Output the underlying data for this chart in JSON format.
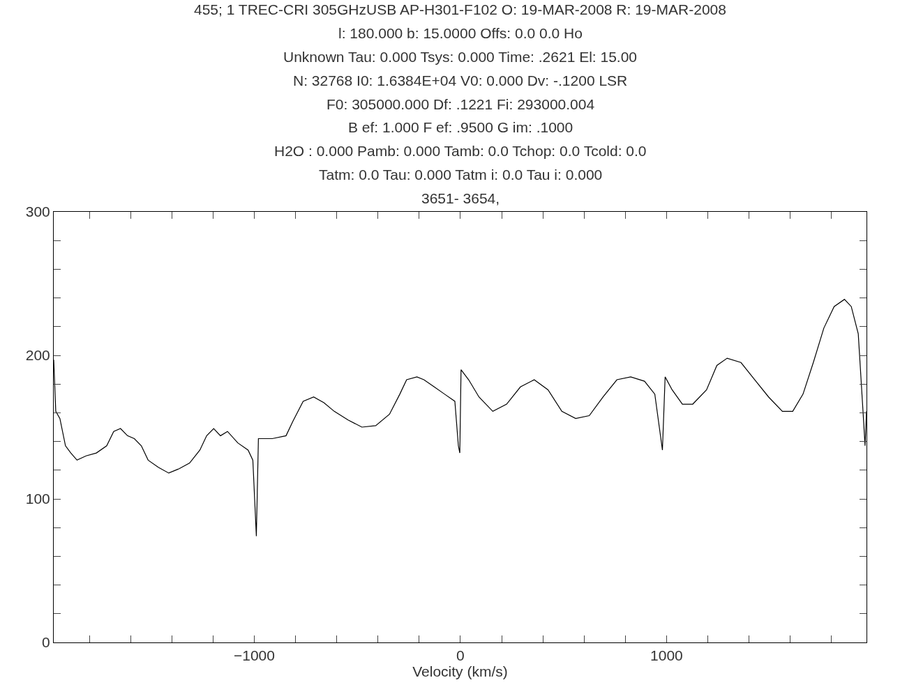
{
  "chart_data": {
    "type": "line",
    "xlabel": "Velocity (km/s)",
    "annotations": [
      "455; 1 TREC-CRI 305GHzUSB AP-H301-F102 O: 19-MAR-2008 R: 19-MAR-2008",
      "l: 180.000 b: 15.0000 Offs: 0.0 0.0 Ho",
      "Unknown Tau: 0.000 Tsys: 0.000 Time: .2621 El: 15.00",
      "N: 32768 I0: 1.6384E+04 V0: 0.000 Dv: -.1200 LSR",
      "F0: 305000.000 Df: .1221 Fi: 293000.004",
      "B ef: 1.000 F ef: .9500 G im: .1000",
      "H2O : 0.000 Pamb: 0.000 Tamb: 0.0 Tchop: 0.0 Tcold: 0.0",
      "Tatm: 0.0 Tau: 0.000 Tatm i: 0.0 Tau i: 0.000",
      "3651- 3654,"
    ],
    "x": [
      -1973,
      -1963,
      -1943,
      -1916,
      -1890,
      -1860,
      -1816,
      -1766,
      -1716,
      -1682,
      -1649,
      -1615,
      -1582,
      -1548,
      -1515,
      -1465,
      -1415,
      -1365,
      -1314,
      -1264,
      -1231,
      -1197,
      -1164,
      -1130,
      -1080,
      -1030,
      -1007,
      -990,
      -980,
      -913,
      -846,
      -813,
      -763,
      -712,
      -662,
      -612,
      -545,
      -478,
      -411,
      -344,
      -294,
      -261,
      -211,
      -177,
      -127,
      -77,
      -27,
      -10,
      -3,
      3,
      40,
      90,
      157,
      224,
      291,
      358,
      425,
      492,
      559,
      625,
      692,
      759,
      826,
      893,
      943,
      980,
      993,
      1027,
      1077,
      1127,
      1194,
      1244,
      1294,
      1361,
      1428,
      1495,
      1562,
      1612,
      1662,
      1712,
      1763,
      1813,
      1863,
      1896,
      1930,
      1953,
      1963,
      1970
    ],
    "series": [
      {
        "color": "#000000",
        "values": [
          197,
          161,
          156,
          137,
          132,
          127,
          130,
          132,
          137,
          147,
          149,
          144,
          142,
          137,
          127,
          122,
          118,
          121,
          125,
          134,
          144,
          149,
          144,
          147,
          139,
          134,
          127,
          74,
          142,
          142,
          144,
          154,
          168,
          171,
          167,
          161,
          155,
          150,
          151,
          159,
          173,
          183,
          185,
          183,
          178,
          173,
          168,
          137,
          132,
          190,
          183,
          171,
          161,
          166,
          178,
          183,
          176,
          161,
          156,
          158,
          171,
          183,
          185,
          182,
          173,
          134,
          185,
          176,
          166,
          166,
          176,
          193,
          198,
          195,
          183,
          171,
          161,
          161,
          173,
          195,
          219,
          234,
          239,
          234,
          215,
          161,
          137,
          161
        ]
      }
    ],
    "xlim": [
      -1973,
      1970
    ],
    "xticks": [
      {
        "value": -1800,
        "label": null
      },
      {
        "value": -1600,
        "label": null
      },
      {
        "value": -1400,
        "label": null
      },
      {
        "value": -1200,
        "label": null
      },
      {
        "value": -1000,
        "label": "−1000"
      },
      {
        "value": -800,
        "label": null
      },
      {
        "value": -600,
        "label": null
      },
      {
        "value": -400,
        "label": null
      },
      {
        "value": -200,
        "label": null
      },
      0,
      {
        "value": 200,
        "label": null
      },
      {
        "value": 400,
        "label": null
      },
      {
        "value": 600,
        "label": null
      },
      {
        "value": 800,
        "label": null
      },
      1000,
      {
        "value": 1200,
        "label": null
      },
      {
        "value": 1400,
        "label": null
      },
      {
        "value": 1600,
        "label": null
      },
      {
        "value": 1800,
        "label": null
      }
    ],
    "ylim": [
      0,
      300
    ],
    "yticks": [
      0,
      {
        "value": 20,
        "label": null
      },
      {
        "value": 40,
        "label": null
      },
      {
        "value": 60,
        "label": null
      },
      {
        "value": 80,
        "label": null
      },
      100,
      {
        "value": 120,
        "label": null
      },
      {
        "value": 140,
        "label": null
      },
      {
        "value": 160,
        "label": null
      },
      {
        "value": 180,
        "label": null
      },
      200,
      {
        "value": 220,
        "label": null
      },
      {
        "value": 240,
        "label": null
      },
      {
        "value": 260,
        "label": null
      },
      {
        "value": 280,
        "label": null
      },
      300
    ],
    "grid": false,
    "marker": "none",
    "line_style": "solid"
  }
}
